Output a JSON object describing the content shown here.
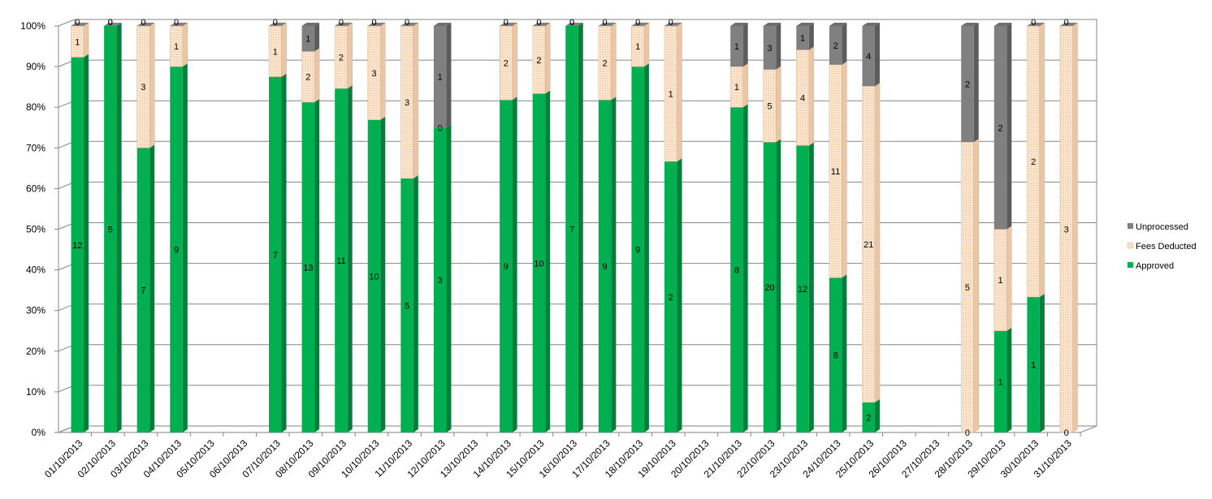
{
  "chart_data": {
    "type": "bar",
    "stacked": "percent",
    "title": "",
    "xlabel": "",
    "ylabel": "",
    "ylim": [
      0,
      100
    ],
    "y_ticks": [
      "0%",
      "10%",
      "20%",
      "30%",
      "40%",
      "50%",
      "60%",
      "70%",
      "80%",
      "90%",
      "100%"
    ],
    "grid": true,
    "legend_position": "right",
    "categories": [
      "01/10/2013",
      "02/10/2013",
      "03/10/2013",
      "04/10/2013",
      "05/10/2013",
      "06/10/2013",
      "07/10/2013",
      "08/10/2013",
      "09/10/2013",
      "10/10/2013",
      "11/10/2013",
      "12/10/2013",
      "13/10/2013",
      "14/10/2013",
      "15/10/2013",
      "16/10/2013",
      "17/10/2013",
      "18/10/2013",
      "19/10/2013",
      "20/10/2013",
      "21/10/2013",
      "22/10/2013",
      "23/10/2013",
      "24/10/2013",
      "25/10/2013",
      "26/10/2013",
      "27/10/2013",
      "28/10/2013",
      "29/10/2013",
      "30/10/2013",
      "31/10/2013"
    ],
    "series": [
      {
        "name": "Approved",
        "color": "#00b050",
        "values": [
          12,
          5,
          7,
          9,
          null,
          null,
          7,
          13,
          11,
          10,
          5,
          3,
          null,
          9,
          10,
          7,
          9,
          9,
          2,
          null,
          8,
          20,
          12,
          8,
          2,
          null,
          null,
          0,
          1,
          1,
          0
        ]
      },
      {
        "name": "Fees Deducted",
        "color": "#fbd4b4",
        "values": [
          1,
          0,
          3,
          1,
          null,
          null,
          1,
          2,
          2,
          3,
          3,
          0,
          null,
          2,
          2,
          0,
          2,
          1,
          1,
          null,
          1,
          5,
          4,
          11,
          21,
          null,
          null,
          5,
          1,
          2,
          3
        ]
      },
      {
        "name": "Unprocessed",
        "color": "#808080",
        "values": [
          0,
          0,
          0,
          0,
          null,
          null,
          0,
          1,
          0,
          0,
          0,
          1,
          null,
          0,
          0,
          0,
          0,
          0,
          0,
          null,
          1,
          3,
          1,
          2,
          4,
          null,
          null,
          2,
          2,
          0,
          0
        ]
      }
    ]
  }
}
